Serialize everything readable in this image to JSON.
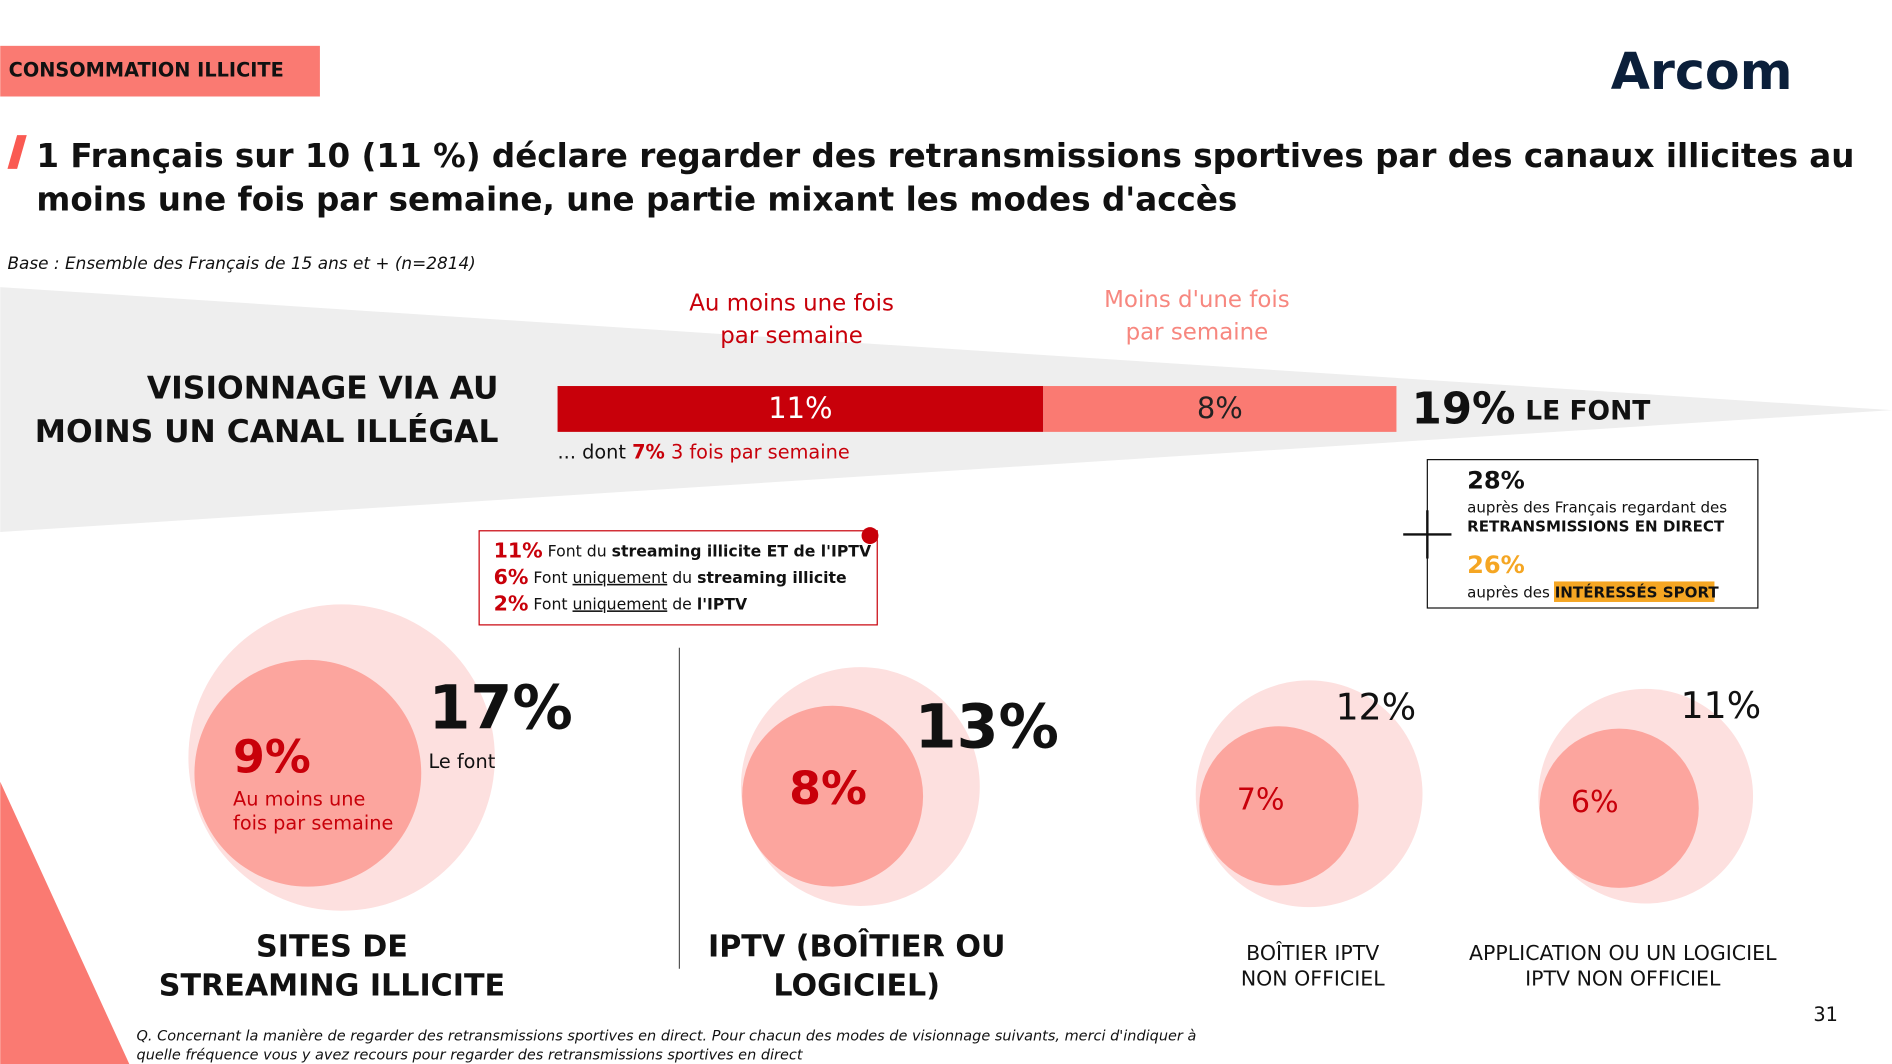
{
  "tag": "CONSOMMATION ILLICITE",
  "logo": "Arcom",
  "title_lines": [
    "1 Français sur 10 (11 %) déclare regarder des retransmissions sportives par des canaux illicites au",
    "moins une fois par semaine, une partie mixant les modes d'accès"
  ],
  "base": "Base : Ensemble des Français de 15 ans et + (n=2814)",
  "legend": [
    {
      "lines": [
        "Au moins une fois",
        "par semaine"
      ],
      "color": "#c8000a"
    },
    {
      "lines": [
        "Moins d'une fois",
        "par semaine"
      ],
      "color": "#f7877f"
    }
  ],
  "main": {
    "label_lines": [
      "VISIONNAGE VIA AU",
      "MOINS UN CANAL ILLÉGAL"
    ],
    "segments": [
      {
        "value": 11,
        "label": "11%",
        "color": "#c8000a"
      },
      {
        "value": 8,
        "label": "8%",
        "color": "#fa7a72"
      }
    ],
    "total": "19%",
    "total_suffix": "LE FONT",
    "note": "... dont ",
    "note_value": "7%",
    "note_rest": " 3 fois par semaine"
  },
  "details": [
    [
      "11%",
      " Font du ",
      "streaming illicite ET de l'IPTV",
      ""
    ],
    [
      "6%",
      " Font ",
      "uniquement",
      " du ",
      "streaming illicite"
    ],
    [
      "2%",
      " Font ",
      "uniquement",
      " de ",
      "l'IPTV"
    ]
  ],
  "side": {
    "v1": "28%",
    "t1": "auprès des Français regardant des",
    "b1": "RETRANSMISSIONS EN DIRECT",
    "v2": "26%",
    "t2": "auprès des ",
    "b2": "INTÉRESSÉS SPORT"
  },
  "circles": [
    {
      "outer": "17%",
      "outer_note": "Le font",
      "inner": "9%",
      "inner_lines": [
        "Au moins une",
        "fois par semaine"
      ],
      "label_lines": [
        "SITES DE",
        "STREAMING ILLICITE"
      ]
    },
    {
      "outer": "13%",
      "inner": "8%",
      "label_lines": [
        "IPTV (BOÎTIER OU",
        "LOGICIEL)"
      ]
    },
    {
      "outer": "12%",
      "inner": "7%",
      "label_lines": [
        "BOÎTIER IPTV",
        "NON OFFICIEL"
      ]
    },
    {
      "outer": "11%",
      "inner": "6%",
      "label_lines": [
        "APPLICATION OU UN LOGICIEL",
        "IPTV NON OFFICIEL"
      ]
    }
  ],
  "footnote_lines": [
    "Q. Concernant la manière de regarder des retransmissions sportives en direct. Pour chacun des modes de visionnage suivants, merci d'indiquer à",
    "quelle fréquence vous y avez recours pour regarder des retransmissions sportives en direct"
  ],
  "page": "31"
}
